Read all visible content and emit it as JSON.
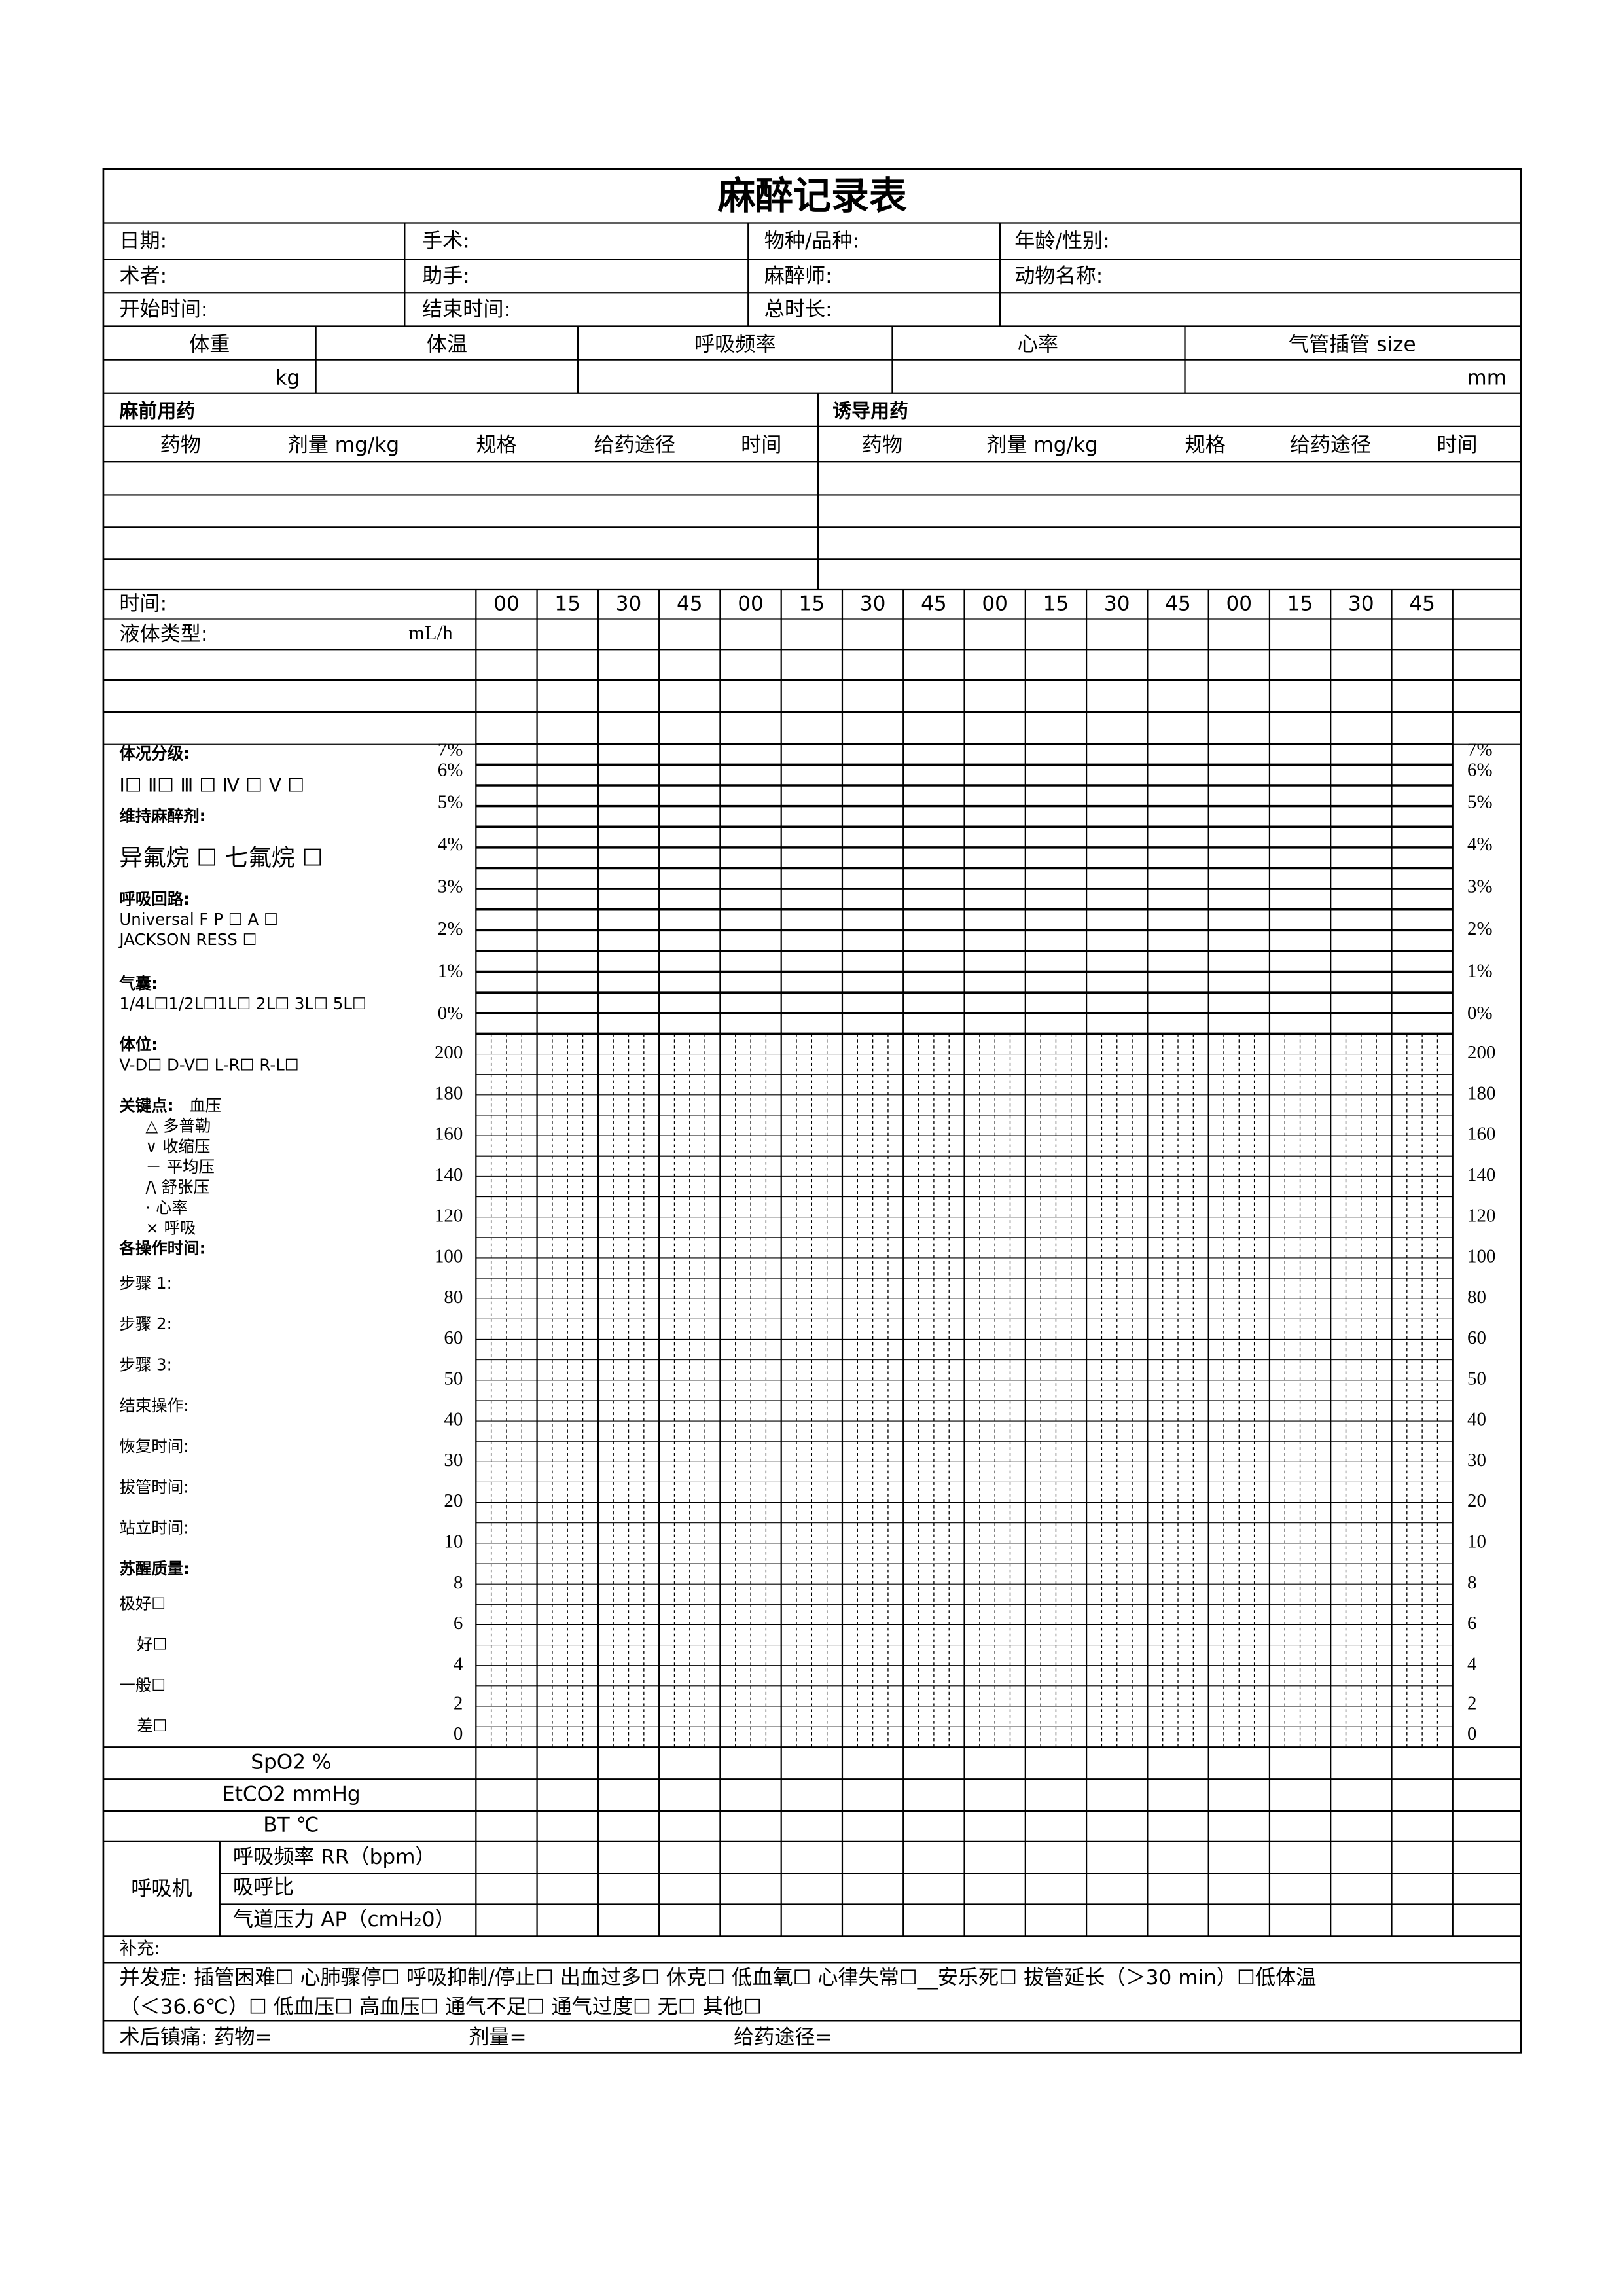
{
  "title": "麻醉记录表",
  "info": [
    [
      "日期:",
      "手术:",
      "物种/品种:",
      "年龄/性别:"
    ],
    [
      "术者:",
      "助手:",
      "麻醉师:",
      "动物名称:"
    ],
    [
      "开始时间:",
      "结束时间:",
      "总时长:"
    ]
  ],
  "measures": [
    "体重",
    "体温",
    "呼吸频率",
    "心率",
    "气管插管  size"
  ],
  "measure_units": [
    "kg",
    "mm"
  ],
  "meds": {
    "pre": "麻前用药",
    "induction": "诱导用药",
    "columns": [
      "药物",
      "剂量 mg/kg",
      "规格",
      "给药途径",
      "时间"
    ]
  },
  "timeline": {
    "time_label": "时间:",
    "times": [
      "00",
      "15",
      "30",
      "45",
      "00",
      "15",
      "30",
      "45",
      "00",
      "15",
      "30",
      "45",
      "00",
      "15",
      "30",
      "45"
    ],
    "fluid_label": "液体类型:",
    "fluid_unit": "mL/h"
  },
  "gas_scale": [
    "7%",
    "6%",
    "5%",
    "4%",
    "3%",
    "2%",
    "1%",
    "0%"
  ],
  "vital_scale": [
    "200",
    "180",
    "160",
    "140",
    "120",
    "100",
    "80",
    "60",
    "50",
    "40",
    "30",
    "20",
    "10",
    "8",
    "6",
    "4",
    "2",
    "0"
  ],
  "left_panel": [
    {
      "text": "体况分级:",
      "bold": true
    },
    {
      "text": "Ⅰ☐  Ⅱ☐  Ⅲ ☐  Ⅳ ☐  Ⅴ ☐",
      "bold": false
    },
    {
      "text": "维持麻醉剂:",
      "bold": true
    },
    {
      "text": "异氟烷 ☐     七氟烷 ☐",
      "bold": false
    },
    {
      "text": "呼吸回路:",
      "bold": true
    },
    {
      "text": "Universal F       P ☐   A ☐",
      "bold": false
    },
    {
      "text": "JACKSON RESS          ☐",
      "bold": false
    },
    {
      "text": "气囊:",
      "bold": true
    },
    {
      "text": "1/4L☐1/2L☐1L☐  2L☐  3L☐  5L☐",
      "bold": false
    },
    {
      "text": "体位:",
      "bold": true
    },
    {
      "text": "V-D☐     D-V☐     L-R☐  R-L☐",
      "bold": false
    },
    {
      "text": "关键点:",
      "bold": true
    },
    {
      "text": "血压",
      "bold": false
    },
    {
      "text": "△     多普勒",
      "bold": false
    },
    {
      "text": "∨     收缩压",
      "bold": false
    },
    {
      "text": "－     平均压",
      "bold": false
    },
    {
      "text": "/\\     舒张压",
      "bold": false
    },
    {
      "text": "·    心率",
      "bold": false
    },
    {
      "text": "×     呼吸",
      "bold": false
    },
    {
      "text": "各操作时间:",
      "bold": true
    },
    {
      "text": "步骤 1:",
      "bold": false
    },
    {
      "text": "步骤 2:",
      "bold": false
    },
    {
      "text": "步骤 3:",
      "bold": false
    },
    {
      "text": "结束操作:",
      "bold": false
    },
    {
      "text": "恢复时间:",
      "bold": false
    },
    {
      "text": "拔管时间:",
      "bold": false
    },
    {
      "text": "站立时间:",
      "bold": false
    },
    {
      "text": "苏醒质量:",
      "bold": true
    },
    {
      "text": "极好☐",
      "bold": false
    },
    {
      "text": "好☐",
      "bold": false
    },
    {
      "text": "一般☐",
      "bold": false
    },
    {
      "text": "差☐",
      "bold": false
    }
  ],
  "monitor_rows": [
    "SpO2 %",
    "EtCO2 mmHg",
    "BT  ℃"
  ],
  "ventilator": {
    "label": "呼吸机",
    "rows": [
      "呼吸频率 RR（bpm）",
      "吸呼比",
      "气道压力 AP（cmH₂0）"
    ]
  },
  "notes": {
    "supplement": "补充:",
    "complications": [
      "并发症:  插管困难☐   心肺骤停☐   呼吸抑制/停止☐   出血过多☐   休克☐    低血氧☐    心律失常☐__安乐死☐    拔管延长（＞30 min）☐低体温",
      "（＜36.6℃）☐     低血压☐      高血压☐     通气不足☐      通气过度☐      无☐       其他☐"
    ],
    "analgesia": [
      "术后镇痛:  药物=",
      "剂量=",
      "给药途径="
    ]
  }
}
